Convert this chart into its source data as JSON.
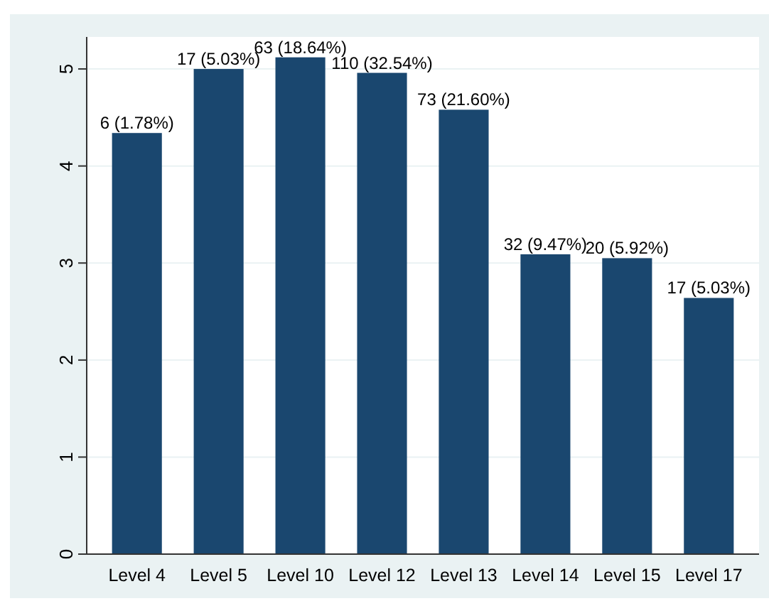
{
  "chart_data": {
    "type": "bar",
    "categories": [
      "Level 4",
      "Level 5",
      "Level 10",
      "Level 12",
      "Level 13",
      "Level 14",
      "Level 15",
      "Level 17"
    ],
    "values": [
      4.34,
      5.0,
      5.12,
      4.96,
      4.58,
      3.09,
      3.05,
      2.64
    ],
    "annotations": [
      {
        "text": "6 (1.78%)",
        "x": "Level 4",
        "y": 4.34
      },
      {
        "text": "17 (5.03%)",
        "x": "Level 5",
        "y": 5.0
      },
      {
        "text": "63 (18.64%)",
        "x": "Level 10",
        "y": 5.12
      },
      {
        "text": "110 (32.54%)",
        "x": "Level 12",
        "y": 4.96
      },
      {
        "text": "73 (21.60%)",
        "x": "Level 13",
        "y": 4.58
      },
      {
        "text": "32 (9.47%)",
        "x": "Level 14",
        "y": 3.09
      },
      {
        "text": "20 (5.92%)",
        "x": "Level 15",
        "y": 3.05
      },
      {
        "text": "17 (5.03%)",
        "x": "Level 17",
        "y": 2.64
      }
    ],
    "color": "#1a476f",
    "ylim": [
      0,
      5.33
    ],
    "yticks": [
      0,
      1,
      2,
      3,
      4,
      5
    ],
    "grid": "y"
  }
}
